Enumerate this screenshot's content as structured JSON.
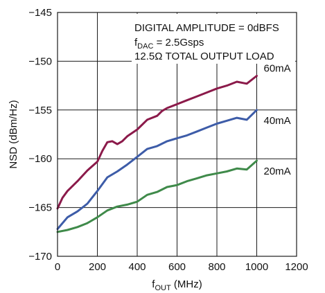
{
  "chart_data": {
    "type": "line",
    "ylabel": "NSD (dBm/Hz)",
    "xlabel": {
      "main": "f",
      "sub": "OUT",
      "rest": " (MHz)"
    },
    "xlim": [
      0,
      1200
    ],
    "ylim": [
      -170,
      -145
    ],
    "x_ticks": [
      0,
      200,
      400,
      600,
      800,
      1000,
      1200
    ],
    "y_ticks": [
      -145,
      -150,
      -155,
      -160,
      -165,
      -170
    ],
    "x_tick_labels": [
      "0",
      "200",
      "400",
      "600",
      "800",
      "1000",
      "1200"
    ],
    "y_tick_labels": [
      "−145",
      "−150",
      "−155",
      "−160",
      "−165",
      "−170"
    ],
    "grid": true,
    "annotations": {
      "line1": "DIGITAL AMPLITUDE = 0dBFS",
      "line2_main": "f",
      "line2_sub": "DAC",
      "line2_rest": " = 2.5Gsps",
      "line3": "12.5Ω TOTAL OUTPUT LOAD"
    },
    "series": [
      {
        "name": "60mA",
        "color": "#8b1a4a",
        "x": [
          0,
          25,
          50,
          100,
          150,
          200,
          225,
          250,
          275,
          300,
          325,
          350,
          400,
          450,
          500,
          525,
          550,
          600,
          650,
          700,
          750,
          800,
          850,
          900,
          950,
          1000
        ],
        "y": [
          -165.1,
          -164,
          -163.3,
          -162.3,
          -161.2,
          -160.3,
          -159.2,
          -158.3,
          -158.2,
          -158.5,
          -158.2,
          -157.7,
          -157.0,
          -156.0,
          -155.6,
          -155.1,
          -154.8,
          -154.4,
          -154.0,
          -153.6,
          -153.2,
          -152.8,
          -152.5,
          -152.1,
          -152.3,
          -151.5
        ]
      },
      {
        "name": "40mA",
        "color": "#3d5ca8",
        "x": [
          0,
          50,
          100,
          150,
          200,
          250,
          300,
          350,
          400,
          450,
          500,
          550,
          600,
          650,
          700,
          750,
          800,
          850,
          900,
          950,
          1000
        ],
        "y": [
          -167.2,
          -166.0,
          -165.4,
          -164.6,
          -163.3,
          -161.9,
          -161.3,
          -160.6,
          -159.8,
          -159.0,
          -158.7,
          -158.2,
          -157.9,
          -157.6,
          -157.2,
          -156.8,
          -156.4,
          -156.1,
          -155.8,
          -156.0,
          -155.0
        ]
      },
      {
        "name": "20mA",
        "color": "#3f8a4a",
        "x": [
          0,
          50,
          100,
          150,
          200,
          250,
          300,
          350,
          400,
          450,
          500,
          550,
          600,
          650,
          700,
          750,
          800,
          850,
          900,
          950,
          1000
        ],
        "y": [
          -167.5,
          -167.3,
          -167.0,
          -166.6,
          -166.0,
          -165.3,
          -164.9,
          -164.7,
          -164.4,
          -163.7,
          -163.4,
          -162.9,
          -162.7,
          -162.3,
          -162.0,
          -161.7,
          -161.5,
          -161.3,
          -161.0,
          -161.1,
          -160.2
        ]
      }
    ]
  }
}
